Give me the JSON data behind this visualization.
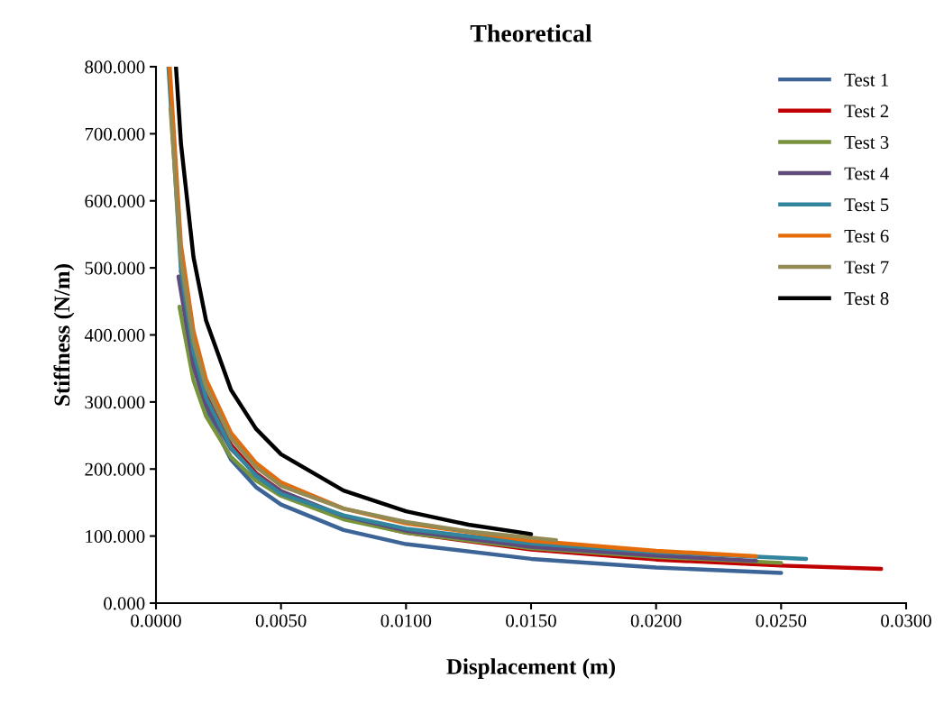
{
  "chart_data": {
    "type": "line",
    "title": "Theoretical",
    "xlabel": "Displacement (m)",
    "ylabel": "Stiffness (N/m)",
    "xlim": [
      0,
      0.03
    ],
    "ylim": [
      0,
      800
    ],
    "xticks": [
      {
        "value": 0,
        "label": "0.0000"
      },
      {
        "value": 0.005,
        "label": "0.0050"
      },
      {
        "value": 0.01,
        "label": "0.0100"
      },
      {
        "value": 0.015,
        "label": "0.0150"
      },
      {
        "value": 0.02,
        "label": "0.0200"
      },
      {
        "value": 0.025,
        "label": "0.0250"
      },
      {
        "value": 0.03,
        "label": "0.0300"
      }
    ],
    "yticks": [
      {
        "value": 0,
        "label": "0.000"
      },
      {
        "value": 100,
        "label": "100.000"
      },
      {
        "value": 200,
        "label": "200.000"
      },
      {
        "value": 300,
        "label": "300.000"
      },
      {
        "value": 400,
        "label": "400.000"
      },
      {
        "value": 500,
        "label": "500.000"
      },
      {
        "value": 600,
        "label": "600.000"
      },
      {
        "value": 700,
        "label": "700.000"
      },
      {
        "value": 800,
        "label": "800.000"
      }
    ],
    "grid": false,
    "legend": "top right",
    "marker": "none",
    "line_style": "solid",
    "series": [
      {
        "name": "Test 1",
        "color": "#3c6496",
        "x": [
          0.0012,
          0.0015,
          0.002,
          0.003,
          0.004,
          0.005,
          0.0075,
          0.01,
          0.015,
          0.02,
          0.025
        ],
        "values": [
          419,
          356,
          288,
          214,
          173,
          147,
          109,
          88,
          66,
          53,
          45
        ]
      },
      {
        "name": "Test 2",
        "color": "#c00000",
        "x": [
          0.001,
          0.0015,
          0.002,
          0.003,
          0.004,
          0.005,
          0.0075,
          0.01,
          0.015,
          0.02,
          0.025,
          0.029
        ],
        "values": [
          495,
          376,
          310,
          236,
          194,
          167,
          127,
          105,
          80,
          65,
          56,
          51
        ]
      },
      {
        "name": "Test 3",
        "color": "#77933c",
        "x": [
          0.00094,
          0.0015,
          0.002,
          0.003,
          0.004,
          0.005,
          0.0075,
          0.01,
          0.015,
          0.02,
          0.025
        ],
        "values": [
          442,
          332,
          279,
          218,
          183,
          160,
          125,
          105,
          82,
          69,
          60
        ]
      },
      {
        "name": "Test 4",
        "color": "#604a7b",
        "x": [
          0.0009,
          0.0015,
          0.002,
          0.003,
          0.004,
          0.005,
          0.0075,
          0.01,
          0.015,
          0.02,
          0.024
        ],
        "values": [
          487,
          354,
          296,
          230,
          192,
          167,
          130,
          108,
          84,
          71,
          63
        ]
      },
      {
        "name": "Test 5",
        "color": "#31859c",
        "x": [
          0.0005,
          0.001,
          0.0015,
          0.002,
          0.003,
          0.004,
          0.005,
          0.0075,
          0.01,
          0.015,
          0.02,
          0.026
        ],
        "values": [
          800,
          496,
          375,
          307,
          232,
          190,
          163,
          131,
          111,
          89,
          76,
          66
        ]
      },
      {
        "name": "Test 6",
        "color": "#e46c0a",
        "x": [
          0.00055,
          0.001,
          0.0015,
          0.002,
          0.003,
          0.004,
          0.005,
          0.0075,
          0.01,
          0.015,
          0.02,
          0.024
        ],
        "values": [
          800,
          534,
          406,
          334,
          254,
          209,
          180,
          141,
          119,
          93,
          78,
          70
        ]
      },
      {
        "name": "Test 7",
        "color": "#948a54",
        "x": [
          0.00058,
          0.001,
          0.0015,
          0.002,
          0.003,
          0.004,
          0.005,
          0.0075,
          0.01,
          0.0125,
          0.016
        ],
        "values": [
          738,
          513,
          391,
          323,
          246,
          203,
          175,
          141,
          121,
          107,
          94
        ]
      },
      {
        "name": "Test 8",
        "color": "#000000",
        "x": [
          0.0008,
          0.001,
          0.0015,
          0.002,
          0.003,
          0.004,
          0.005,
          0.0075,
          0.01,
          0.0125,
          0.015
        ],
        "values": [
          800,
          685,
          516,
          422,
          318,
          260,
          222,
          168,
          137,
          117,
          103
        ]
      }
    ]
  }
}
